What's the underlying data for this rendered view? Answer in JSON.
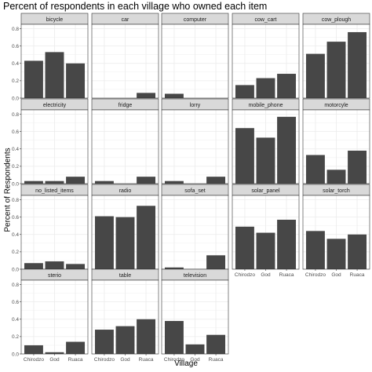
{
  "chart_data": {
    "type": "bar",
    "title": "Percent of respondents in each village who owned each item",
    "xlabel": "Village",
    "ylabel": "Percent of Respondents",
    "categories": [
      "Chirodzo",
      "God",
      "Ruaca"
    ],
    "ylim": [
      0,
      0.85
    ],
    "yticks": [
      "0.0",
      "0.2",
      "0.4",
      "0.6",
      "0.8"
    ],
    "grid": true,
    "colors": {
      "bar": "#474747",
      "panel": "#ffffff",
      "strip": "#d9d9d9",
      "grid": "#ebebeb",
      "frame": "#333333"
    },
    "facets": [
      {
        "name": "bicycle",
        "values": [
          0.43,
          0.53,
          0.4
        ]
      },
      {
        "name": "car",
        "values": [
          0.0,
          0.0,
          0.06
        ]
      },
      {
        "name": "computer",
        "values": [
          0.05,
          0.0,
          0.0
        ]
      },
      {
        "name": "cow_cart",
        "values": [
          0.15,
          0.23,
          0.28
        ]
      },
      {
        "name": "cow_plough",
        "values": [
          0.51,
          0.65,
          0.76
        ]
      },
      {
        "name": "electricity",
        "values": [
          0.03,
          0.03,
          0.08
        ]
      },
      {
        "name": "fridge",
        "values": [
          0.03,
          0.0,
          0.08
        ]
      },
      {
        "name": "lorry",
        "values": [
          0.03,
          0.0,
          0.08
        ]
      },
      {
        "name": "mobile_phone",
        "values": [
          0.64,
          0.53,
          0.77
        ]
      },
      {
        "name": "motorcyle",
        "values": [
          0.33,
          0.16,
          0.38
        ]
      },
      {
        "name": "no_listed_items",
        "values": [
          0.07,
          0.09,
          0.06
        ]
      },
      {
        "name": "radio",
        "values": [
          0.61,
          0.6,
          0.73
        ]
      },
      {
        "name": "sofa_set",
        "values": [
          0.02,
          0.0,
          0.16
        ]
      },
      {
        "name": "solar_panel",
        "values": [
          0.49,
          0.42,
          0.57
        ]
      },
      {
        "name": "solar_torch",
        "values": [
          0.44,
          0.35,
          0.4
        ]
      },
      {
        "name": "sterio",
        "values": [
          0.1,
          0.02,
          0.14
        ]
      },
      {
        "name": "table",
        "values": [
          0.28,
          0.32,
          0.4
        ]
      },
      {
        "name": "television",
        "values": [
          0.38,
          0.11,
          0.22
        ]
      }
    ]
  }
}
